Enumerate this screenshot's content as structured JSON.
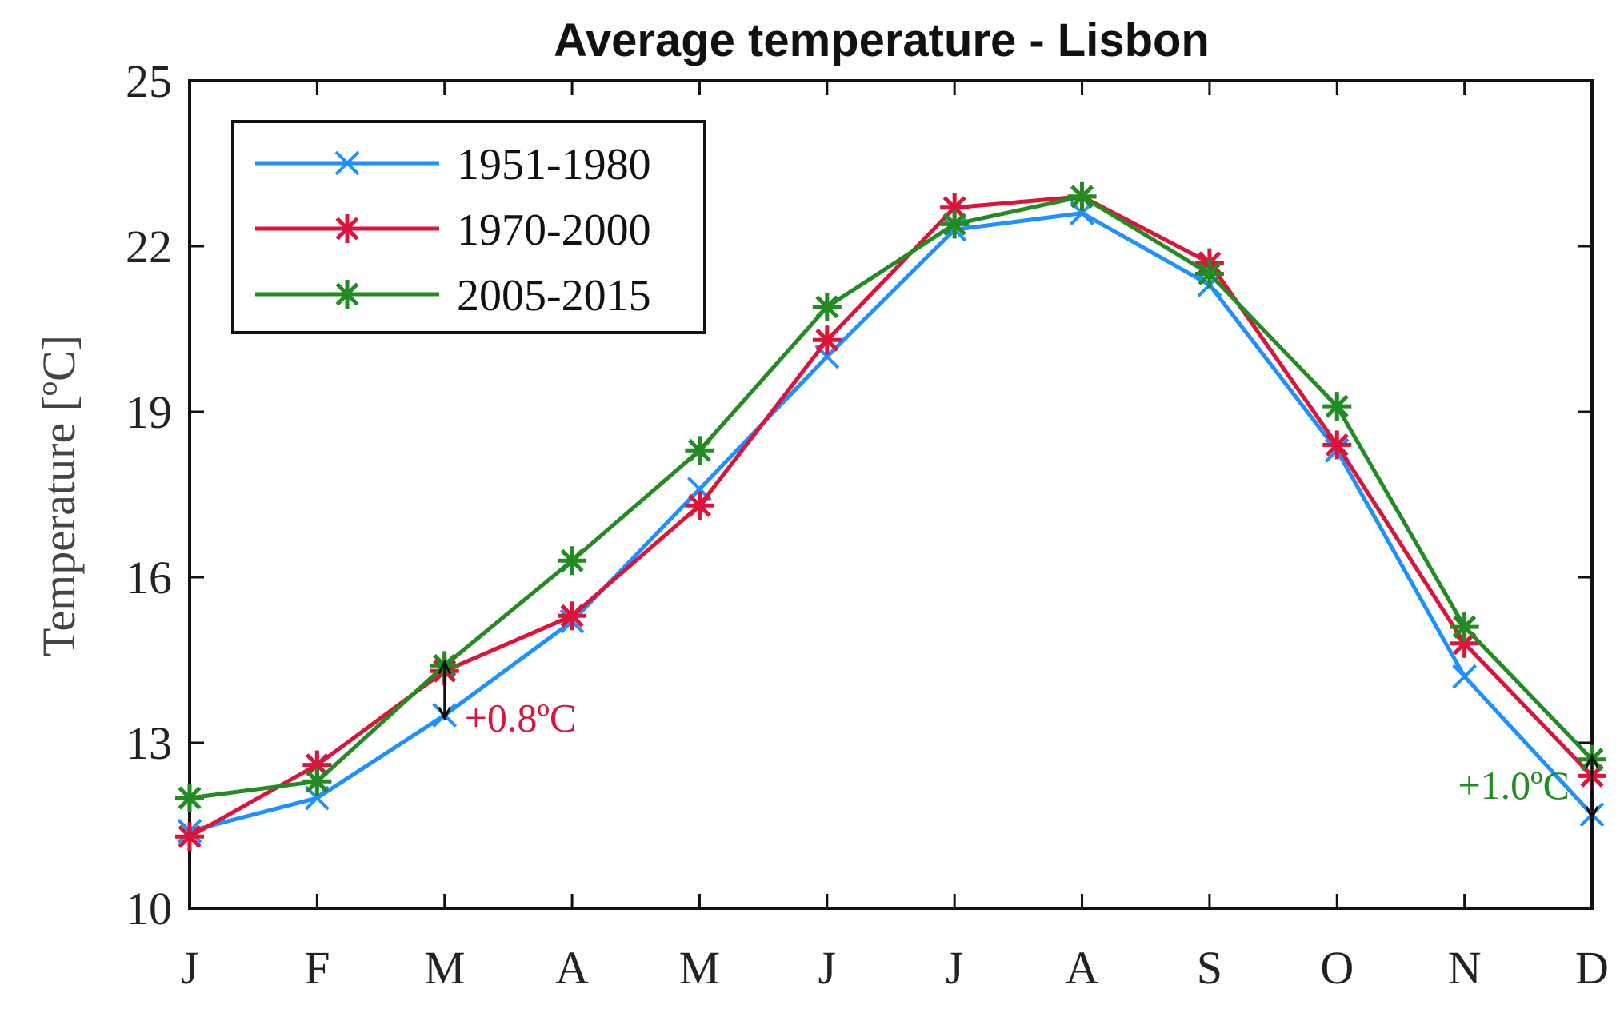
{
  "chart_data": {
    "type": "line",
    "title": "Average temperature - Lisbon",
    "xlabel": "",
    "ylabel": "Temperature [ºC]",
    "categories": [
      "J",
      "F",
      "M",
      "A",
      "M",
      "J",
      "J",
      "A",
      "S",
      "O",
      "N",
      "D"
    ],
    "ylim": [
      10,
      25
    ],
    "yticks": [
      10,
      13,
      16,
      19,
      22,
      25
    ],
    "grid": false,
    "legend_position": "top-left",
    "series": [
      {
        "name": "1951-1980",
        "color": "#1E90FF",
        "marker": "x",
        "values": [
          11.4,
          12.0,
          13.5,
          15.2,
          17.6,
          20.0,
          22.3,
          22.6,
          21.3,
          18.3,
          14.2,
          11.7
        ]
      },
      {
        "name": "1970-2000",
        "color": "#DC143C",
        "marker": "asterisk",
        "values": [
          11.3,
          12.6,
          14.3,
          15.3,
          17.3,
          20.3,
          22.7,
          22.9,
          21.7,
          18.4,
          14.8,
          12.4
        ]
      },
      {
        "name": "2005-2015",
        "color": "#228B22",
        "marker": "asterisk",
        "values": [
          12.0,
          12.3,
          14.4,
          16.3,
          18.3,
          20.9,
          22.4,
          22.9,
          21.5,
          19.1,
          15.1,
          12.7
        ]
      }
    ],
    "annotations": [
      {
        "text": "+0.8ºC",
        "color": "#DC143C",
        "category_index": 2,
        "from": 13.5,
        "to": 14.4,
        "label_side": "right"
      },
      {
        "text": "+1.0ºC",
        "color": "#228B22",
        "category_index": 11,
        "from": 11.7,
        "to": 12.7,
        "label_side": "left"
      }
    ]
  }
}
